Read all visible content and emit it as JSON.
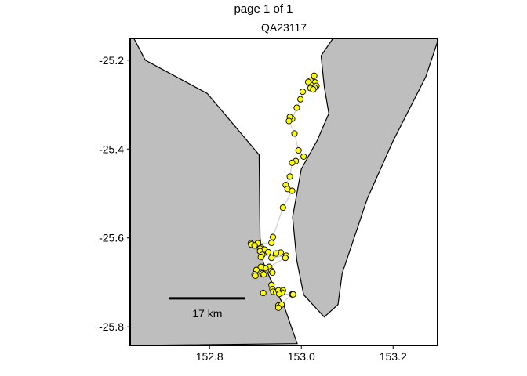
{
  "page_label": "page 1 of 1",
  "title": "QA23117",
  "scale_bar": {
    "label": "17 km",
    "length_deg": 0.166,
    "from_x": 152.712,
    "y": -25.736
  },
  "colors": {
    "land": "#bebebe",
    "coast": "#000000",
    "track": "#c8c8c8",
    "point_fill": "#ffff00",
    "point_stroke": "#000000",
    "frame": "#000000"
  },
  "chart_data": {
    "type": "scatter",
    "title": "QA23117",
    "xlabel": "",
    "ylabel": "",
    "xlim": [
      152.627,
      153.297
    ],
    "ylim": [
      -25.842,
      -25.151
    ],
    "x_ticks": [
      152.8,
      153.0,
      153.2
    ],
    "y_ticks": [
      -25.2,
      -25.4,
      -25.6,
      -25.8
    ],
    "x_tick_labels": [
      "152.8",
      "153.0",
      "153.2"
    ],
    "y_tick_labels": [
      "-25.2",
      "-25.4",
      "-25.6",
      "-25.8"
    ],
    "grid": false,
    "land_polygons": [
      [
        [
          152.627,
          -25.151
        ],
        [
          152.635,
          -25.151
        ],
        [
          152.66,
          -25.2
        ],
        [
          152.795,
          -25.275
        ],
        [
          152.908,
          -25.413
        ],
        [
          152.91,
          -25.6
        ],
        [
          152.917,
          -25.655
        ],
        [
          152.94,
          -25.71
        ],
        [
          152.963,
          -25.755
        ],
        [
          152.978,
          -25.8
        ],
        [
          152.991,
          -25.838
        ],
        [
          152.627,
          -25.842
        ]
      ],
      [
        [
          153.069,
          -25.151
        ],
        [
          153.297,
          -25.151
        ],
        [
          153.297,
          -25.158
        ],
        [
          153.271,
          -25.238
        ],
        [
          153.2,
          -25.382
        ],
        [
          153.144,
          -25.511
        ],
        [
          153.089,
          -25.68
        ],
        [
          153.08,
          -25.75
        ],
        [
          153.05,
          -25.778
        ],
        [
          153.005,
          -25.728
        ],
        [
          152.99,
          -25.65
        ],
        [
          152.981,
          -25.553
        ],
        [
          153.0,
          -25.445
        ],
        [
          153.035,
          -25.38
        ],
        [
          153.06,
          -25.32
        ],
        [
          153.05,
          -25.26
        ],
        [
          153.043,
          -25.19
        ]
      ]
    ],
    "track": [
      [
        153.028,
        -25.235
      ],
      [
        153.02,
        -25.246
      ],
      [
        153.03,
        -25.25
      ],
      [
        153.021,
        -25.256
      ],
      [
        153.033,
        -25.258
      ],
      [
        153.029,
        -25.262
      ],
      [
        153.015,
        -25.249
      ],
      [
        153.02,
        -25.263
      ],
      [
        153.026,
        -25.266
      ],
      [
        153.003,
        -25.271
      ],
      [
        152.998,
        -25.288
      ],
      [
        152.99,
        -25.307
      ],
      [
        152.98,
        -25.332
      ],
      [
        152.975,
        -25.328
      ],
      [
        152.973,
        -25.337
      ],
      [
        152.985,
        -25.365
      ],
      [
        152.994,
        -25.403
      ],
      [
        153.005,
        -25.417
      ],
      [
        152.988,
        -25.427
      ],
      [
        152.98,
        -25.431
      ],
      [
        152.975,
        -25.462
      ],
      [
        152.966,
        -25.481
      ],
      [
        152.97,
        -25.49
      ],
      [
        152.98,
        -25.494
      ],
      [
        152.96,
        -25.532
      ],
      [
        152.938,
        -25.598
      ],
      [
        152.935,
        -25.611
      ],
      [
        152.905,
        -25.612
      ],
      [
        152.89,
        -25.612
      ],
      [
        152.891,
        -25.615
      ],
      [
        152.898,
        -25.617
      ],
      [
        152.913,
        -25.622
      ],
      [
        152.91,
        -25.624
      ],
      [
        152.92,
        -25.626
      ],
      [
        152.91,
        -25.63
      ],
      [
        152.928,
        -25.632
      ],
      [
        152.915,
        -25.638
      ],
      [
        152.912,
        -25.643
      ],
      [
        152.955,
        -25.633
      ],
      [
        152.945,
        -25.635
      ],
      [
        152.935,
        -25.645
      ],
      [
        152.967,
        -25.64
      ],
      [
        152.965,
        -25.645
      ],
      [
        152.93,
        -25.665
      ],
      [
        152.922,
        -25.668
      ],
      [
        152.912,
        -25.665
      ],
      [
        152.902,
        -25.672
      ],
      [
        152.935,
        -25.674
      ],
      [
        152.937,
        -25.678
      ],
      [
        152.915,
        -25.68
      ],
      [
        152.898,
        -25.682
      ],
      [
        152.9,
        -25.685
      ],
      [
        152.918,
        -25.682
      ],
      [
        152.935,
        -25.706
      ],
      [
        152.937,
        -25.715
      ],
      [
        152.939,
        -25.721
      ],
      [
        152.945,
        -25.722
      ],
      [
        152.95,
        -25.718
      ],
      [
        152.96,
        -25.718
      ],
      [
        152.958,
        -25.723
      ],
      [
        152.952,
        -25.726
      ],
      [
        152.917,
        -25.724
      ],
      [
        152.98,
        -25.727
      ],
      [
        152.982,
        -25.727
      ],
      [
        152.95,
        -25.752
      ],
      [
        152.957,
        -25.75
      ],
      [
        152.95,
        -25.757
      ]
    ]
  }
}
